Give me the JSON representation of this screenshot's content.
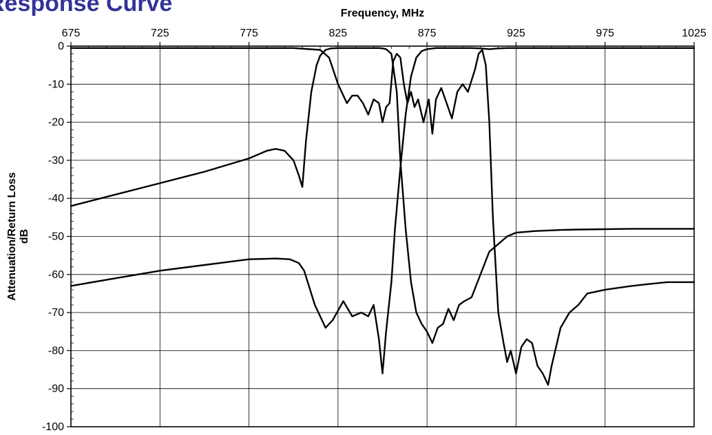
{
  "page": {
    "title": "Response Curve"
  },
  "colors": {
    "title": "#333399",
    "series": "#000000",
    "background": "#ffffff"
  },
  "chart_data": {
    "type": "line",
    "title": "Response Curve",
    "xlabel": "Frequency, MHz",
    "ylabel": "Attenuation/Return Loss",
    "ylabel_unit": "dB",
    "xlim": [
      675,
      1025
    ],
    "ylim": [
      -100,
      0
    ],
    "x_ticks": [
      675,
      725,
      775,
      825,
      875,
      925,
      975,
      1025
    ],
    "y_ticks": [
      0,
      -10,
      -20,
      -30,
      -40,
      -50,
      -60,
      -70,
      -80,
      -90,
      -100
    ],
    "x_axis_position": "top",
    "grid": true,
    "legend": "none",
    "series": [
      {
        "x": [
          675,
          700,
          725,
          750,
          775,
          790,
          798,
          803,
          806,
          808,
          812,
          818,
          822,
          828,
          833,
          838,
          842,
          845,
          848,
          850,
          852,
          855,
          857,
          860,
          863,
          866,
          869,
          872,
          875,
          880,
          885,
          890,
          895,
          900,
          905,
          910,
          915,
          920,
          925,
          930,
          935,
          940,
          950,
          960,
          975,
          990,
          1000,
          1010,
          1025
        ],
        "y": [
          -63,
          -61,
          -59,
          -57.5,
          -56,
          -55.8,
          -56,
          -57,
          -59,
          -62,
          -68,
          -74,
          -72,
          -67,
          -71,
          -70,
          -71,
          -68,
          -77,
          -86,
          -75,
          -62,
          -48,
          -32,
          -18,
          -8,
          -3,
          -1.3,
          -0.8,
          -0.5,
          -0.5,
          -0.5,
          -0.5,
          -0.5,
          -0.6,
          -0.8,
          -0.6,
          -0.5,
          -0.5,
          -0.5,
          -0.5,
          -0.5,
          -0.5,
          -0.5,
          -0.5,
          -0.5,
          -0.5,
          -0.5,
          -0.5
        ]
      },
      {
        "x": [
          675,
          700,
          725,
          750,
          775,
          785,
          790,
          795,
          800,
          803,
          805,
          807,
          810,
          813,
          815,
          818,
          821,
          825,
          828,
          831,
          834,
          837,
          840,
          843,
          846,
          848,
          850,
          852,
          855,
          858,
          860,
          863,
          866,
          869,
          872,
          875,
          878,
          881,
          884,
          887,
          890,
          893,
          896,
          900,
          905,
          910,
          915,
          920,
          925,
          930,
          935,
          940,
          945,
          950,
          960,
          975,
          990,
          1000,
          1010,
          1025
        ],
        "y": [
          -42,
          -39,
          -36,
          -33,
          -29.5,
          -27.5,
          -27,
          -27.5,
          -30,
          -34,
          -37,
          -25,
          -12,
          -5,
          -2.5,
          -1,
          -0.6,
          -0.5,
          -0.5,
          -0.5,
          -0.5,
          -0.5,
          -0.5,
          -0.5,
          -0.5,
          -0.5,
          -0.6,
          -0.8,
          -2,
          -12,
          -30,
          -48,
          -62,
          -70,
          -73,
          -75,
          -78,
          -74,
          -73,
          -69,
          -72,
          -68,
          -67,
          -66,
          -60,
          -54,
          -52,
          -50,
          -49,
          -48.8,
          -48.6,
          -48.5,
          -48.4,
          -48.3,
          -48.2,
          -48.1,
          -48,
          -48,
          -48,
          -48
        ]
      },
      {
        "x": [
          675,
          700,
          725,
          750,
          775,
          800,
          815,
          820,
          825,
          830,
          833,
          836,
          839,
          842,
          845,
          848,
          850,
          852,
          854,
          856,
          858,
          860,
          862,
          864,
          866,
          868,
          870,
          873,
          876,
          878,
          880,
          883,
          886,
          889,
          892,
          895,
          898,
          900,
          902,
          904,
          906,
          908,
          910,
          912,
          915,
          918,
          920,
          922,
          925,
          928,
          931,
          934,
          937,
          940,
          943,
          945,
          950,
          955,
          960,
          965,
          975,
          990,
          1000,
          1010,
          1025
        ],
        "y": [
          -0.5,
          -0.5,
          -0.5,
          -0.5,
          -0.5,
          -0.5,
          -1,
          -3,
          -10,
          -15,
          -13,
          -13,
          -15,
          -18,
          -14,
          -15,
          -20,
          -16,
          -15,
          -4,
          -2,
          -3,
          -10,
          -15,
          -12,
          -16,
          -14,
          -20,
          -14,
          -23,
          -14,
          -11,
          -15,
          -19,
          -12,
          -10,
          -12,
          -9,
          -6,
          -2,
          -1,
          -5,
          -20,
          -45,
          -70,
          -78,
          -83,
          -80,
          -86,
          -79,
          -77,
          -78,
          -84,
          -86,
          -89,
          -84,
          -74,
          -70,
          -68,
          -65,
          -64,
          -63,
          -62.5,
          -62,
          -62
        ]
      }
    ]
  }
}
